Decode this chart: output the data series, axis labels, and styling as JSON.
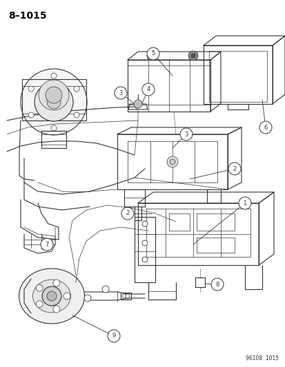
{
  "title": "8–1015",
  "footer": "96108  1015",
  "bg_color": "#ffffff",
  "lc": "#333333",
  "figsize": [
    4.14,
    5.33
  ],
  "dpi": 100
}
